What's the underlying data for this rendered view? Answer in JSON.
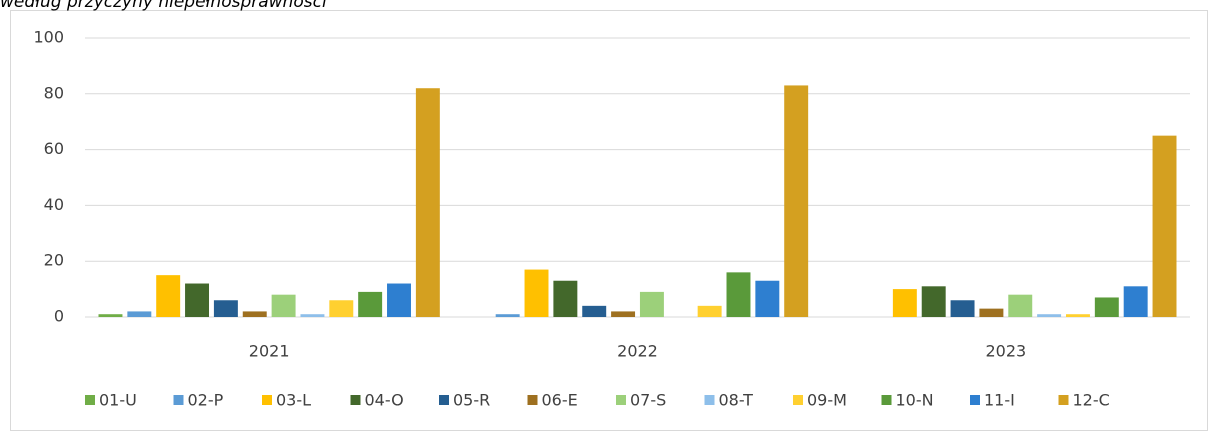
{
  "chart_data": {
    "type": "bar",
    "subtitle": "według przyczyny niepełnosprawności",
    "categories": [
      "2021",
      "2022",
      "2023"
    ],
    "series": [
      {
        "name": "01-U",
        "color": "#70ad47",
        "values": [
          1,
          0,
          0
        ]
      },
      {
        "name": "02-P",
        "color": "#5b9bd5",
        "values": [
          2,
          1,
          0
        ]
      },
      {
        "name": "03-L",
        "color": "#ffc000",
        "values": [
          15,
          17,
          10
        ]
      },
      {
        "name": "04-O",
        "color": "#43682b",
        "values": [
          12,
          13,
          11
        ]
      },
      {
        "name": "05-R",
        "color": "#255e91",
        "values": [
          6,
          4,
          6
        ]
      },
      {
        "name": "06-E",
        "color": "#9e7020",
        "values": [
          2,
          2,
          3
        ]
      },
      {
        "name": "07-S",
        "color": "#9cd07a",
        "values": [
          8,
          9,
          8
        ]
      },
      {
        "name": "08-T",
        "color": "#8ebfea",
        "values": [
          1,
          0,
          1
        ]
      },
      {
        "name": "09-M",
        "color": "#ffd030",
        "values": [
          6,
          4,
          1
        ]
      },
      {
        "name": "10-N",
        "color": "#5a9a3a",
        "values": [
          9,
          16,
          7
        ]
      },
      {
        "name": "11-I",
        "color": "#2e7fd0",
        "values": [
          12,
          13,
          11
        ]
      },
      {
        "name": "12-C",
        "color": "#d4a020",
        "values": [
          82,
          83,
          65
        ]
      }
    ],
    "ylim": [
      0,
      100
    ],
    "yticks": [
      0,
      20,
      40,
      60,
      80,
      100
    ],
    "grid": true,
    "legend": "bottom"
  }
}
